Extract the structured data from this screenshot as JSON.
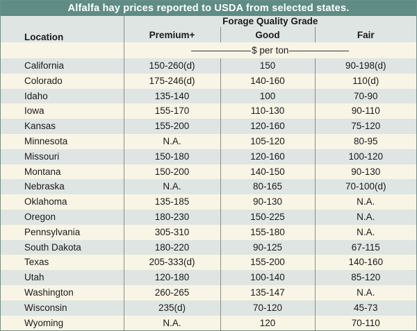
{
  "title": "Alfalfa hay prices reported to USDA from selected states.",
  "header": {
    "group_label": "Forage Quality Grade",
    "location_label": "Location",
    "grades": [
      "Premium+",
      "Good",
      "Fair"
    ],
    "unit_label": "$ per ton"
  },
  "rows": [
    {
      "location": "California",
      "premium": "150-260(d)",
      "good": "150",
      "fair": "90-198(d)"
    },
    {
      "location": "Colorado",
      "premium": "175-246(d)",
      "good": "140-160",
      "fair": "110(d)"
    },
    {
      "location": "Idaho",
      "premium": "135-140",
      "good": "100",
      "fair": "70-90"
    },
    {
      "location": "Iowa",
      "premium": "155-170",
      "good": "110-130",
      "fair": "90-110"
    },
    {
      "location": "Kansas",
      "premium": "155-200",
      "good": "120-160",
      "fair": "75-120"
    },
    {
      "location": "Minnesota",
      "premium": "N.A.",
      "good": "105-120",
      "fair": "80-95"
    },
    {
      "location": "Missouri",
      "premium": "150-180",
      "good": "120-160",
      "fair": "100-120"
    },
    {
      "location": "Montana",
      "premium": "150-200",
      "good": "140-150",
      "fair": "90-130"
    },
    {
      "location": "Nebraska",
      "premium": "N.A.",
      "good": "80-165",
      "fair": "70-100(d)"
    },
    {
      "location": "Oklahoma",
      "premium": "135-185",
      "good": "90-130",
      "fair": "N.A."
    },
    {
      "location": "Oregon",
      "premium": "180-230",
      "good": "150-225",
      "fair": "N.A."
    },
    {
      "location": "Pennsylvania",
      "premium": "305-310",
      "good": "155-180",
      "fair": "N.A."
    },
    {
      "location": "South Dakota",
      "premium": "180-220",
      "good": "90-125",
      "fair": "67-115"
    },
    {
      "location": "Texas",
      "premium": "205-333(d)",
      "good": "155-200",
      "fair": "140-160"
    },
    {
      "location": "Utah",
      "premium": "120-180",
      "good": "100-140",
      "fair": "85-120"
    },
    {
      "location": "Washington",
      "premium": "260-265",
      "good": "135-147",
      "fair": "N.A."
    },
    {
      "location": "Wisconsin",
      "premium": "235(d)",
      "good": "70-120",
      "fair": "45-73"
    },
    {
      "location": "Wyoming",
      "premium": "N.A.",
      "good": "120",
      "fair": "70-110"
    }
  ]
}
